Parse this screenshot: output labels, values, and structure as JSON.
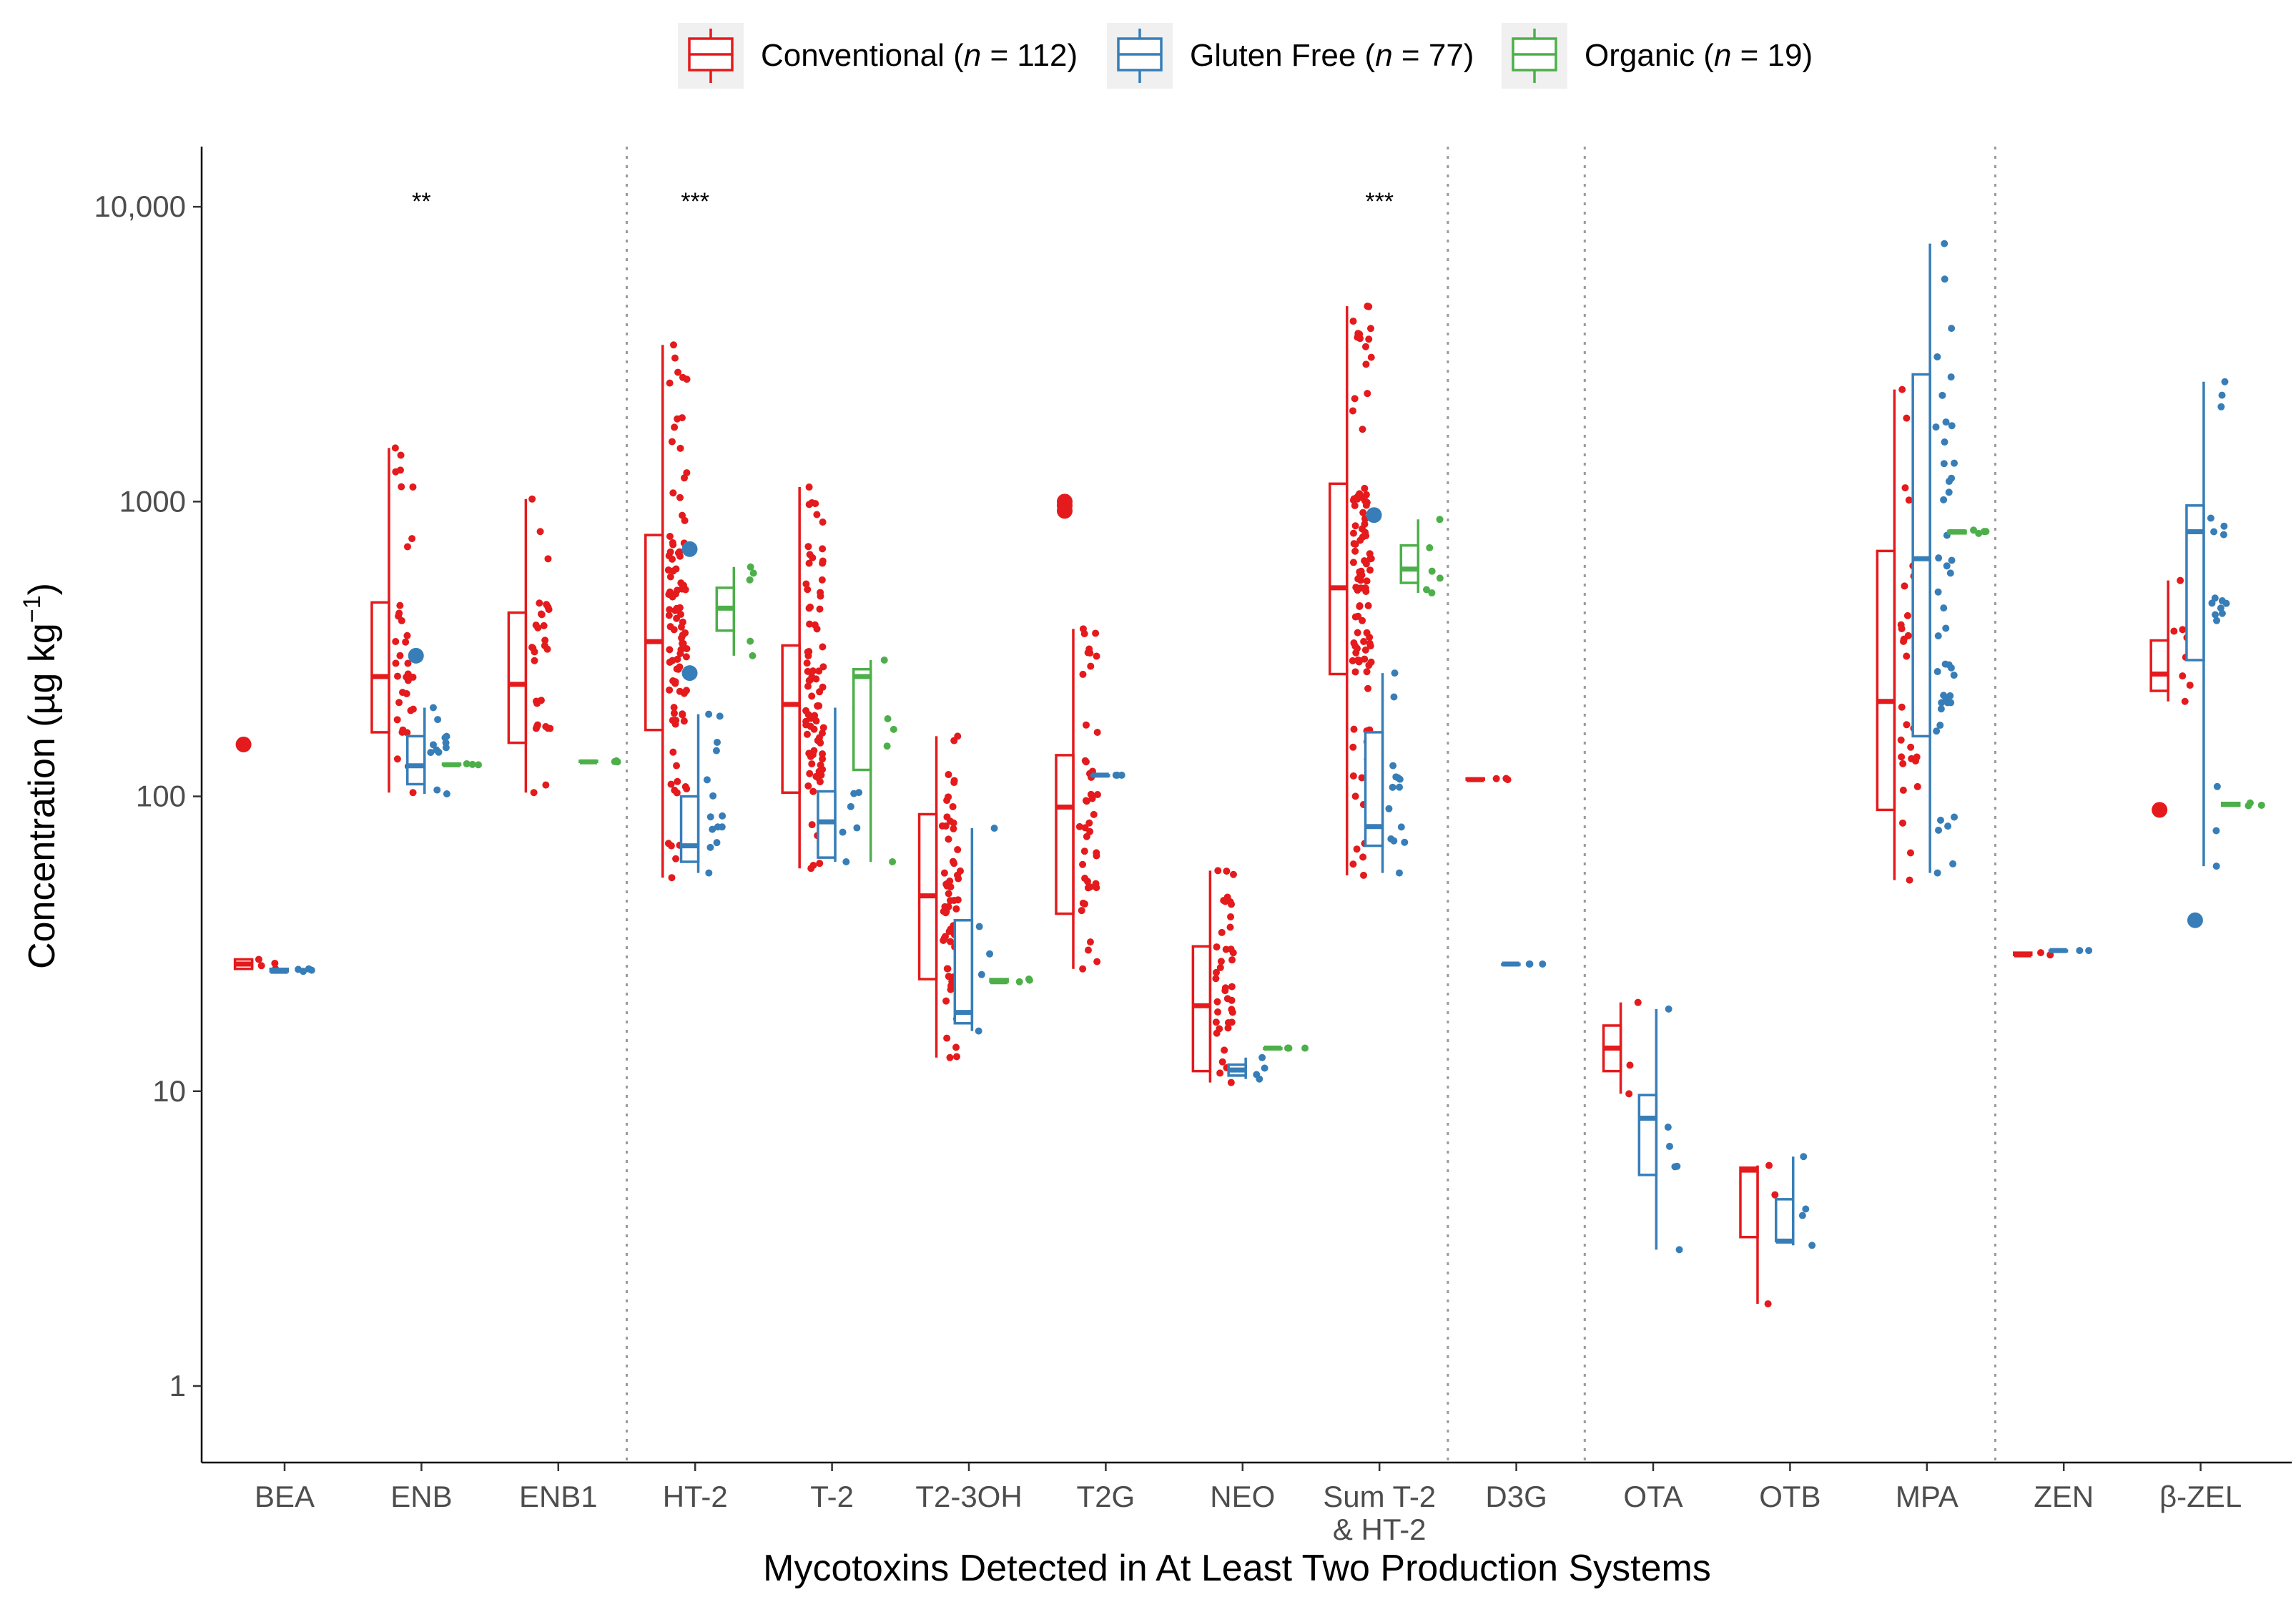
{
  "chart_data": {
    "type": "boxplot",
    "title": "",
    "xlabel": "Mycotoxins Detected in At Least Two Production Systems",
    "ylabel": "Concentration (µg kg⁻¹)",
    "yscale": "log10",
    "ylim": [
      0.55,
      16000
    ],
    "y_ticks": [
      1,
      10,
      100,
      1000,
      10000
    ],
    "y_tick_labels": [
      "1",
      "10",
      "100",
      "1000",
      "10,000"
    ],
    "categories": [
      "BEA",
      "ENB",
      "ENB1",
      "HT-2",
      "T-2",
      "T2-3OH",
      "T2G",
      "NEO",
      "Sum T-2 & HT-2",
      "D3G",
      "OTA",
      "OTB",
      "MPA",
      "ZEN",
      "β-ZEL"
    ],
    "category_labels": [
      [
        "BEA"
      ],
      [
        "ENB"
      ],
      [
        "ENB1"
      ],
      [
        "HT-2"
      ],
      [
        "T-2"
      ],
      [
        "T2-3OH"
      ],
      [
        "T2G"
      ],
      [
        "NEO"
      ],
      [
        "Sum T-2",
        "& HT-2"
      ],
      [
        "D3G"
      ],
      [
        "OTA"
      ],
      [
        "OTB"
      ],
      [
        "MPA"
      ],
      [
        "ZEN"
      ],
      [
        "β-ZEL"
      ]
    ],
    "group_separators_after": [
      2,
      8,
      9,
      12
    ],
    "legend": {
      "position": "top",
      "items": [
        {
          "key": "conv",
          "prefix": "Conventional (",
          "n_symbol": "n",
          "suffix": " = 112)"
        },
        {
          "key": "gf",
          "prefix": "Gluten Free (",
          "n_symbol": "n",
          "suffix": " = 77)"
        },
        {
          "key": "org",
          "prefix": "Organic (",
          "n_symbol": "n",
          "suffix": " = 19)"
        }
      ]
    },
    "significance": [
      {
        "category": "ENB",
        "label": "**"
      },
      {
        "category": "HT-2",
        "label": "***"
      },
      {
        "category": "Sum T-2 & HT-2",
        "label": "***"
      }
    ],
    "series": [
      {
        "name": "Conventional",
        "key": "conv",
        "color": "#E41A1C",
        "offset": -0.3,
        "boxes": [
          {
            "cat": "BEA",
            "min": 26,
            "q1": 26,
            "median": 27,
            "q3": 28,
            "max": 28,
            "outliers": [
              150
            ],
            "n_points": 4
          },
          {
            "cat": "ENB",
            "min": 103,
            "q1": 165,
            "median": 255,
            "q3": 455,
            "max": 1520,
            "outliers": [],
            "n_points": 35
          },
          {
            "cat": "ENB1",
            "min": 103,
            "q1": 152,
            "median": 240,
            "q3": 420,
            "max": 1020,
            "outliers": [],
            "n_points": 30
          },
          {
            "cat": "HT-2",
            "min": 53,
            "q1": 168,
            "median": 335,
            "q3": 770,
            "max": 3400,
            "outliers": [],
            "n_points": 100
          },
          {
            "cat": "T-2",
            "min": 57,
            "q1": 103,
            "median": 205,
            "q3": 325,
            "max": 1120,
            "outliers": [],
            "n_points": 85
          },
          {
            "cat": "T2-3OH",
            "min": 13,
            "q1": 24,
            "median": 46,
            "q3": 87,
            "max": 160,
            "outliers": [],
            "n_points": 65
          },
          {
            "cat": "T2G",
            "min": 26,
            "q1": 40,
            "median": 92,
            "q3": 138,
            "max": 370,
            "outliers": [
              930,
              970,
              1000
            ],
            "n_points": 45
          },
          {
            "cat": "NEO",
            "min": 10.7,
            "q1": 11.7,
            "median": 19.5,
            "q3": 31,
            "max": 56,
            "outliers": [],
            "n_points": 40
          },
          {
            "cat": "Sum T-2 & HT-2",
            "min": 54,
            "q1": 260,
            "median": 510,
            "q3": 1150,
            "max": 4600,
            "outliers": [],
            "n_points": 110
          },
          {
            "cat": "D3G",
            "min": 114,
            "q1": 114,
            "median": 114,
            "q3": 115,
            "max": 115,
            "outliers": [],
            "n_points": 3
          },
          {
            "cat": "OTA",
            "min": 9.8,
            "q1": 11.7,
            "median": 14,
            "q3": 16.7,
            "max": 20,
            "outliers": [],
            "n_points": 3
          },
          {
            "cat": "OTB",
            "min": 1.9,
            "q1": 3.2,
            "median": 5.4,
            "q3": 5.5,
            "max": 5.6,
            "outliers": [],
            "n_points": 3
          },
          {
            "cat": "MPA",
            "min": 52,
            "q1": 90,
            "median": 210,
            "q3": 680,
            "max": 2400,
            "outliers": [],
            "n_points": 35
          },
          {
            "cat": "ZEN",
            "min": 29,
            "q1": 29,
            "median": 29,
            "q3": 29.5,
            "max": 29.5,
            "outliers": [],
            "n_points": 2
          },
          {
            "cat": "β-ZEL",
            "min": 210,
            "q1": 228,
            "median": 260,
            "q3": 338,
            "max": 540,
            "outliers": [
              90
            ],
            "n_points": 8
          }
        ]
      },
      {
        "name": "Gluten Free",
        "key": "gf",
        "color": "#377EB8",
        "offset": -0.04,
        "boxes": [
          {
            "cat": "BEA",
            "min": 25.5,
            "q1": 25.5,
            "median": 25.5,
            "q3": 26,
            "max": 26,
            "outliers": [],
            "n_points": 4
          },
          {
            "cat": "ENB",
            "min": 102,
            "q1": 110,
            "median": 127,
            "q3": 160,
            "max": 200,
            "outliers": [
              300
            ],
            "n_points": 12
          },
          {
            "cat": "HT-2",
            "min": 55,
            "q1": 60,
            "median": 68,
            "q3": 100,
            "max": 190,
            "outliers": [
              262,
              690
            ],
            "n_points": 14
          },
          {
            "cat": "T-2",
            "min": 60,
            "q1": 62,
            "median": 82,
            "q3": 104,
            "max": 200,
            "outliers": [],
            "n_points": 8
          },
          {
            "cat": "T2-3OH",
            "min": 16,
            "q1": 17,
            "median": 18.5,
            "q3": 38,
            "max": 78,
            "outliers": [],
            "n_points": 5
          },
          {
            "cat": "T2G",
            "min": 118,
            "q1": 118,
            "median": 118,
            "q3": 118,
            "max": 118,
            "outliers": [],
            "n_points": 3
          },
          {
            "cat": "NEO",
            "min": 11,
            "q1": 11.3,
            "median": 11.8,
            "q3": 12.3,
            "max": 13,
            "outliers": [],
            "n_points": 4
          },
          {
            "cat": "Sum T-2 & HT-2",
            "min": 55,
            "q1": 68,
            "median": 79,
            "q3": 165,
            "max": 262,
            "outliers": [
              900
            ],
            "n_points": 14
          },
          {
            "cat": "D3G",
            "min": 27,
            "q1": 27,
            "median": 27,
            "q3": 27,
            "max": 27,
            "outliers": [],
            "n_points": 3
          },
          {
            "cat": "OTA",
            "min": 2.9,
            "q1": 5.2,
            "median": 8.1,
            "q3": 9.7,
            "max": 19,
            "outliers": [],
            "n_points": 6
          },
          {
            "cat": "OTB",
            "min": 3,
            "q1": 3.1,
            "median": 3.1,
            "q3": 4.3,
            "max": 6,
            "outliers": [],
            "n_points": 4
          },
          {
            "cat": "MPA",
            "min": 55,
            "q1": 160,
            "median": 640,
            "q3": 2700,
            "max": 7500,
            "outliers": [],
            "n_points": 45
          },
          {
            "cat": "ZEN",
            "min": 30,
            "q1": 30,
            "median": 30,
            "q3": 30,
            "max": 30,
            "outliers": [],
            "n_points": 2
          },
          {
            "cat": "β-ZEL",
            "min": 58,
            "q1": 290,
            "median": 790,
            "q3": 970,
            "max": 2550,
            "outliers": [
              38
            ],
            "n_points": 18
          }
        ]
      },
      {
        "name": "Organic",
        "key": "org",
        "color": "#4DAF4A",
        "offset": 0.22,
        "boxes": [
          {
            "cat": "ENB",
            "min": 128,
            "q1": 128,
            "median": 128,
            "q3": 129,
            "max": 129,
            "outliers": [],
            "n_points": 3
          },
          {
            "cat": "ENB1",
            "min": 131,
            "q1": 131,
            "median": 131,
            "q3": 132,
            "max": 132,
            "outliers": [],
            "n_points": 3
          },
          {
            "cat": "HT-2",
            "min": 300,
            "q1": 365,
            "median": 435,
            "q3": 510,
            "max": 600,
            "outliers": [],
            "n_points": 5
          },
          {
            "cat": "T-2",
            "min": 60,
            "q1": 123,
            "median": 255,
            "q3": 270,
            "max": 290,
            "outliers": [],
            "n_points": 5
          },
          {
            "cat": "T2-3OH",
            "min": 23.5,
            "q1": 23.5,
            "median": 23.5,
            "q3": 24,
            "max": 24,
            "outliers": [],
            "n_points": 3
          },
          {
            "cat": "NEO",
            "min": 14,
            "q1": 14,
            "median": 14,
            "q3": 14,
            "max": 14,
            "outliers": [],
            "n_points": 3
          },
          {
            "cat": "Sum T-2 & HT-2",
            "min": 490,
            "q1": 530,
            "median": 590,
            "q3": 710,
            "max": 870,
            "outliers": [],
            "n_points": 6
          },
          {
            "cat": "MPA",
            "min": 780,
            "q1": 780,
            "median": 790,
            "q3": 795,
            "max": 800,
            "outliers": [],
            "n_points": 4
          },
          {
            "cat": "β-ZEL",
            "min": 93,
            "q1": 93,
            "median": 94,
            "q3": 95,
            "max": 95,
            "outliers": [],
            "n_points": 3
          }
        ]
      }
    ]
  }
}
